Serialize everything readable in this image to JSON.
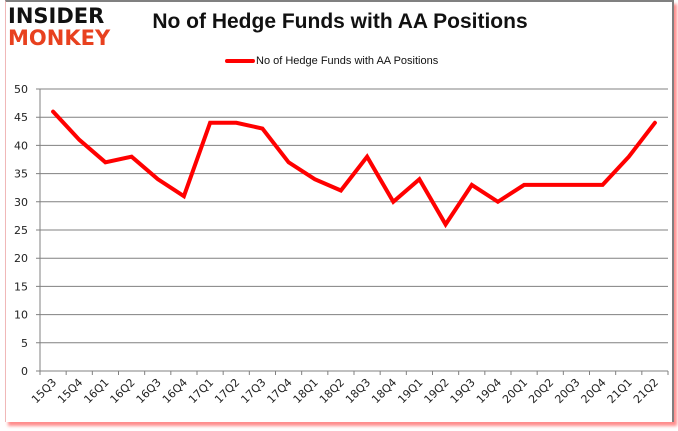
{
  "logo": {
    "line1": "INSIDER",
    "line2": "MONKEY"
  },
  "header": {
    "title": "No of Hedge Funds with AA Positions"
  },
  "legend": {
    "label": "No of Hedge Funds with AA Positions",
    "color": "#ff0000"
  },
  "colors": {
    "line": "#ff0000",
    "grid": "#808080",
    "logo_accent": "#e8411f"
  },
  "chart_data": {
    "type": "line",
    "title": "No of Hedge Funds with AA Positions",
    "xlabel": "",
    "ylabel": "",
    "ylim": [
      0,
      50
    ],
    "yticks": [
      0,
      5,
      10,
      15,
      20,
      25,
      30,
      35,
      40,
      45,
      50
    ],
    "grid": true,
    "legend_position": "top",
    "categories": [
      "15Q3",
      "15Q4",
      "16Q1",
      "16Q2",
      "16Q3",
      "16Q4",
      "17Q1",
      "17Q2",
      "17Q3",
      "17Q4",
      "18Q1",
      "18Q2",
      "18Q3",
      "18Q4",
      "19Q1",
      "19Q2",
      "19Q3",
      "19Q4",
      "20Q1",
      "20Q2",
      "20Q3",
      "20Q4",
      "21Q1",
      "21Q2"
    ],
    "series": [
      {
        "name": "No of Hedge Funds with AA Positions",
        "color": "#ff0000",
        "values": [
          46,
          41,
          37,
          38,
          34,
          31,
          44,
          44,
          43,
          37,
          34,
          32,
          38,
          30,
          34,
          26,
          33,
          30,
          33,
          33,
          33,
          33,
          38,
          44
        ]
      }
    ]
  }
}
